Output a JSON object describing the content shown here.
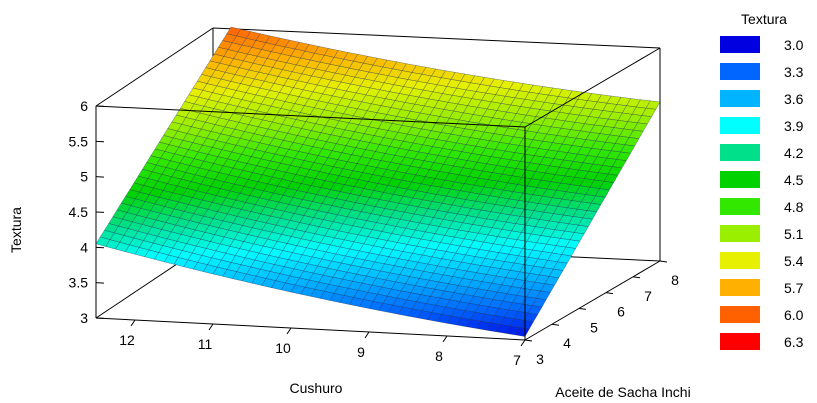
{
  "chart_data": {
    "type": "surface",
    "zlabel": "Textura",
    "xlabel": "Cushuro",
    "ylabel": "Aceite de Sacha Inchi",
    "x_ticks": [
      "12",
      "11",
      "10",
      "9",
      "8",
      "7"
    ],
    "y_ticks": [
      "3",
      "4",
      "5",
      "6",
      "7",
      "8"
    ],
    "z_ticks": [
      "3",
      "3.5",
      "4",
      "4.5",
      "5",
      "5.5",
      "6"
    ],
    "xlim": [
      7,
      12.5
    ],
    "ylim": [
      3,
      8
    ],
    "zlim": [
      3,
      6
    ],
    "corners": [
      {
        "x": 12.5,
        "y": 3,
        "z": 4.05
      },
      {
        "x": 12.5,
        "y": 8,
        "z": 6.0
      },
      {
        "x": 7,
        "y": 3,
        "z": 3.05
      },
      {
        "x": 7,
        "y": 8,
        "z": 5.25
      }
    ],
    "legend": {
      "title": "Textura",
      "position": "right",
      "entries": [
        {
          "label": "3.0",
          "color": "#0000e0"
        },
        {
          "label": "3.3",
          "color": "#0066ff"
        },
        {
          "label": "3.6",
          "color": "#00b4ff"
        },
        {
          "label": "3.9",
          "color": "#00ffff"
        },
        {
          "label": "4.2",
          "color": "#00e08a"
        },
        {
          "label": "4.5",
          "color": "#00d200"
        },
        {
          "label": "4.8",
          "color": "#33e800"
        },
        {
          "label": "5.1",
          "color": "#9aee00"
        },
        {
          "label": "5.4",
          "color": "#e6f000"
        },
        {
          "label": "5.7",
          "color": "#ffb000"
        },
        {
          "label": "6.0",
          "color": "#ff6000"
        },
        {
          "label": "6.3",
          "color": "#ff0000"
        }
      ]
    }
  }
}
